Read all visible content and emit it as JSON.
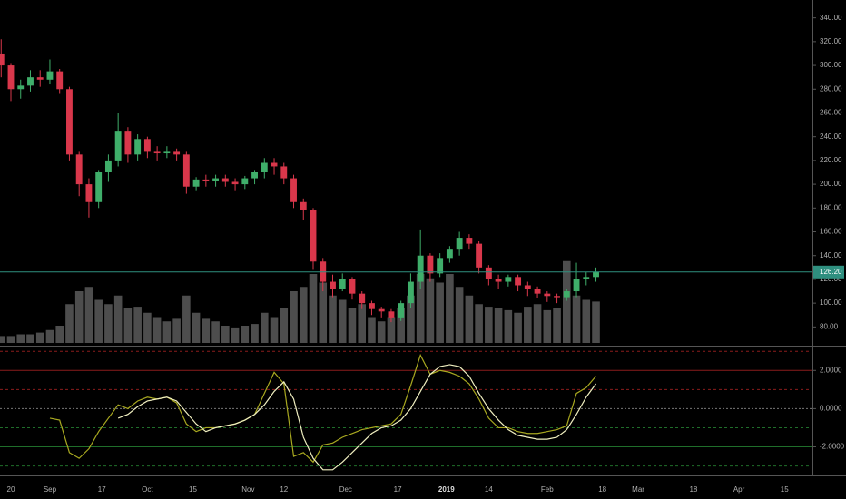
{
  "chart_data": [
    {
      "type": "candlestick",
      "x": [
        -3,
        0,
        3,
        6,
        9,
        12,
        15,
        18,
        21,
        24,
        27,
        30,
        33,
        36,
        39,
        42,
        45,
        48,
        51,
        54,
        57,
        60,
        63,
        66,
        69,
        72,
        75,
        78,
        81,
        84,
        87,
        90,
        93,
        96,
        99,
        102,
        105,
        108,
        111,
        114,
        117,
        120,
        123,
        126,
        129,
        132,
        135,
        138,
        141,
        144,
        147,
        150,
        153,
        156,
        159,
        162,
        165,
        168,
        171,
        174,
        177,
        180
      ],
      "xlim": [
        -3.35,
        246.6
      ],
      "xticks": [
        {
          "value": 0,
          "label": "20"
        },
        {
          "value": 12,
          "label": "Sep"
        },
        {
          "value": 28,
          "label": "17"
        },
        {
          "value": 42,
          "label": "Oct"
        },
        {
          "value": 56,
          "label": "15"
        },
        {
          "value": 73,
          "label": "Nov"
        },
        {
          "value": 84,
          "label": "12"
        },
        {
          "value": 103,
          "label": "Dec"
        },
        {
          "value": 119,
          "label": "17"
        },
        {
          "value": 134,
          "label": "2019"
        },
        {
          "value": 147,
          "label": "14"
        },
        {
          "value": 165,
          "label": "Feb"
        },
        {
          "value": 182,
          "label": "18"
        },
        {
          "value": 193,
          "label": "Mar"
        },
        {
          "value": 210,
          "label": "18"
        },
        {
          "value": 224,
          "label": "Apr"
        },
        {
          "value": 238,
          "label": "15"
        }
      ],
      "ylim": [
        65,
        355
      ],
      "yticks": [
        {
          "value": 340,
          "label": "340.00"
        },
        {
          "value": 320,
          "label": "320.00"
        },
        {
          "value": 300,
          "label": "300.00"
        },
        {
          "value": 280,
          "label": "280.00"
        },
        {
          "value": 260,
          "label": "260.00"
        },
        {
          "value": 240,
          "label": "240.00"
        },
        {
          "value": 220,
          "label": "220.00"
        },
        {
          "value": 200,
          "label": "200.00"
        },
        {
          "value": 180,
          "label": "180.00"
        },
        {
          "value": 160,
          "label": "160.00"
        },
        {
          "value": 140,
          "label": "140.00"
        },
        {
          "value": 120,
          "label": "120.00"
        },
        {
          "value": 100,
          "label": "100.00"
        },
        {
          "value": 80,
          "label": "80.00"
        }
      ],
      "open": [
        310,
        300,
        280,
        283,
        290,
        288,
        295,
        280,
        225,
        200,
        185,
        210,
        220,
        245,
        225,
        238,
        228,
        226,
        228,
        225,
        198,
        204,
        203,
        205,
        202,
        200,
        205,
        210,
        218,
        215,
        205,
        185,
        178,
        135,
        118,
        112,
        120,
        108,
        100,
        95,
        93,
        88,
        100,
        118,
        140,
        125,
        138,
        145,
        155,
        150,
        130,
        120,
        118,
        122,
        115,
        112,
        108,
        106,
        105,
        110,
        120,
        122
      ],
      "high": [
        322,
        302,
        288,
        296,
        296,
        305,
        297,
        282,
        228,
        205,
        212,
        225,
        260,
        248,
        242,
        240,
        232,
        232,
        230,
        228,
        206,
        208,
        208,
        208,
        205,
        207,
        212,
        222,
        222,
        218,
        208,
        188,
        180,
        138,
        124,
        125,
        122,
        110,
        102,
        97,
        95,
        102,
        125,
        162,
        142,
        142,
        148,
        160,
        158,
        152,
        132,
        124,
        124,
        124,
        118,
        114,
        110,
        108,
        112,
        134,
        126,
        130
      ],
      "low": [
        290,
        270,
        272,
        278,
        282,
        284,
        276,
        220,
        190,
        172,
        180,
        202,
        215,
        218,
        220,
        222,
        220,
        222,
        220,
        192,
        195,
        198,
        198,
        198,
        195,
        196,
        200,
        205,
        208,
        200,
        180,
        170,
        128,
        110,
        105,
        110,
        103,
        95,
        90,
        88,
        84,
        85,
        96,
        112,
        118,
        122,
        134,
        140,
        145,
        125,
        115,
        112,
        114,
        110,
        106,
        104,
        101,
        100,
        102,
        105,
        115,
        118
      ],
      "close": [
        300,
        280,
        283,
        290,
        288,
        295,
        280,
        225,
        200,
        185,
        210,
        220,
        245,
        225,
        238,
        228,
        226,
        228,
        225,
        198,
        204,
        203,
        205,
        202,
        200,
        205,
        210,
        218,
        215,
        205,
        185,
        178,
        135,
        118,
        112,
        120,
        108,
        100,
        95,
        93,
        88,
        100,
        118,
        140,
        125,
        138,
        145,
        155,
        150,
        130,
        120,
        118,
        122,
        115,
        112,
        108,
        106,
        105,
        110,
        120,
        122,
        126.2
      ],
      "up_color": "#3fae6a",
      "down_color": "#d9374b",
      "volume": {
        "values": [
          8,
          8,
          10,
          10,
          12,
          15,
          20,
          45,
          60,
          65,
          50,
          45,
          55,
          40,
          42,
          35,
          30,
          25,
          28,
          55,
          35,
          28,
          25,
          20,
          18,
          20,
          22,
          35,
          30,
          40,
          60,
          65,
          80,
          70,
          55,
          50,
          40,
          45,
          30,
          25,
          30,
          40,
          55,
          80,
          75,
          70,
          80,
          65,
          55,
          45,
          42,
          40,
          38,
          35,
          42,
          45,
          38,
          40,
          95,
          55,
          50,
          48
        ],
        "vlim": [
          0,
          100
        ],
        "color": "#4d4d4d"
      },
      "last_price": {
        "value": 126.2,
        "label": "126.20",
        "color": "#2f8f7f"
      }
    },
    {
      "type": "line",
      "x": [
        -3,
        0,
        3,
        6,
        9,
        12,
        15,
        18,
        21,
        24,
        27,
        30,
        33,
        36,
        39,
        42,
        45,
        48,
        51,
        54,
        57,
        60,
        63,
        66,
        69,
        72,
        75,
        78,
        81,
        84,
        87,
        90,
        93,
        96,
        99,
        102,
        105,
        108,
        111,
        114,
        117,
        120,
        123,
        126,
        129,
        132,
        135,
        138,
        141,
        144,
        147,
        150,
        153,
        156,
        159,
        162,
        165,
        168,
        171,
        174,
        177,
        180
      ],
      "xlim": [
        -3.35,
        246.6
      ],
      "ylim": [
        -3.4,
        3.2
      ],
      "yticks": [
        {
          "value": 2,
          "label": "2.0000"
        },
        {
          "value": 0,
          "label": "0.0000"
        },
        {
          "value": -2,
          "label": "-2.0000"
        }
      ],
      "levels": [
        {
          "value": 3,
          "color": "#8a1c1c"
        },
        {
          "value": 2,
          "color": "#8a1c1c"
        },
        {
          "value": 1,
          "color": "#8a1c1c"
        },
        {
          "value": 0,
          "color": "#777777"
        },
        {
          "value": -1,
          "color": "#1f6e2a"
        },
        {
          "value": -2,
          "color": "#1f6e2a"
        },
        {
          "value": -3,
          "color": "#1f6e2a"
        }
      ],
      "series": [
        {
          "color": "#a8a820",
          "values": [
            null,
            null,
            null,
            null,
            null,
            -0.5,
            -0.6,
            -2.3,
            -2.6,
            -2.1,
            -1.2,
            -0.5,
            0.2,
            0.0,
            0.4,
            0.6,
            0.5,
            0.6,
            0.3,
            -0.8,
            -1.2,
            -1.0,
            -1.0,
            -0.9,
            -0.8,
            -0.6,
            -0.3,
            0.8,
            1.9,
            1.3,
            -2.5,
            -2.3,
            -2.8,
            -1.9,
            -1.8,
            -1.5,
            -1.3,
            -1.1,
            -1.0,
            -0.9,
            -0.8,
            -0.3,
            1.2,
            2.8,
            1.8,
            2.0,
            1.9,
            1.7,
            1.3,
            0.5,
            -0.5,
            -1.0,
            -1.0,
            -1.2,
            -1.3,
            -1.3,
            -1.2,
            -1.1,
            -0.9,
            0.8,
            1.1,
            1.7
          ]
        },
        {
          "color": "#f0efc0",
          "values": [
            null,
            null,
            null,
            null,
            null,
            null,
            null,
            null,
            null,
            null,
            null,
            null,
            -0.5,
            -0.3,
            0.1,
            0.4,
            0.5,
            0.6,
            0.4,
            -0.2,
            -0.8,
            -1.2,
            -1.0,
            -0.9,
            -0.8,
            -0.6,
            -0.3,
            0.2,
            0.9,
            1.4,
            0.5,
            -1.5,
            -2.6,
            -3.2,
            -3.2,
            -2.8,
            -2.3,
            -1.8,
            -1.3,
            -1.0,
            -0.9,
            -0.6,
            0.0,
            0.9,
            1.8,
            2.2,
            2.3,
            2.2,
            1.7,
            0.8,
            0.0,
            -0.6,
            -1.1,
            -1.4,
            -1.5,
            -1.6,
            -1.6,
            -1.5,
            -1.1,
            -0.3,
            0.6,
            1.3
          ]
        }
      ]
    }
  ]
}
